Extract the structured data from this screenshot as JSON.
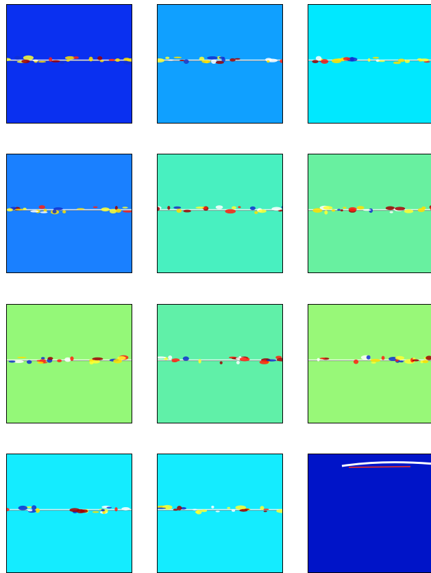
{
  "panels": [
    {
      "color": "#0a30f0",
      "stripe": "middle"
    },
    {
      "color": "#10a0ff",
      "stripe": "middle"
    },
    {
      "color": "#00e8ff",
      "stripe": "middle"
    },
    {
      "color": "#1a80ff",
      "stripe": "middle"
    },
    {
      "color": "#48f0c0",
      "stripe": "middle"
    },
    {
      "color": "#68f0a0",
      "stripe": "middle"
    },
    {
      "color": "#94f878",
      "stripe": "middle"
    },
    {
      "color": "#60f0a8",
      "stripe": "middle"
    },
    {
      "color": "#98f878",
      "stripe": "middle"
    },
    {
      "color": "#14ecff",
      "stripe": "middle"
    },
    {
      "color": "#14ecff",
      "stripe": "middle"
    },
    {
      "color": "#0014c8",
      "stripe": "top"
    }
  ]
}
